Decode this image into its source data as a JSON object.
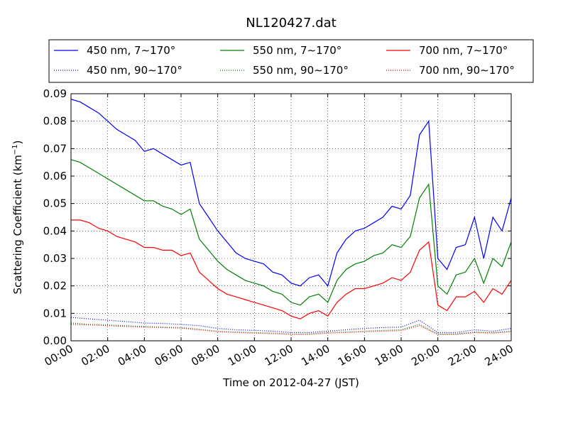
{
  "chart_data": {
    "type": "line",
    "title": "NL120427.dat",
    "xlabel": "Time on 2012-04-27 (JST)",
    "ylabel_main": "Scattering Coefficient (km",
    "ylabel_sup": "−1",
    "ylabel_close": ")",
    "xlim": [
      "00:00",
      "24:00"
    ],
    "ylim": [
      0.0,
      0.09
    ],
    "x_ticks": [
      "00:00",
      "02:00",
      "04:00",
      "06:00",
      "08:00",
      "10:00",
      "12:00",
      "14:00",
      "16:00",
      "18:00",
      "20:00",
      "22:00",
      "24:00"
    ],
    "y_ticks": [
      "0.00",
      "0.01",
      "0.02",
      "0.03",
      "0.04",
      "0.05",
      "0.06",
      "0.07",
      "0.08",
      "0.09"
    ],
    "grid": true,
    "legend_position": "top",
    "series": [
      {
        "name": "450 nm, 7∼170°",
        "color": "#0000ff",
        "style": "solid",
        "x": [
          "00:00",
          "00:30",
          "01:00",
          "01:30",
          "02:00",
          "02:30",
          "03:00",
          "03:30",
          "04:00",
          "04:30",
          "05:00",
          "05:30",
          "06:00",
          "06:30",
          "07:00",
          "07:30",
          "08:00",
          "08:30",
          "09:00",
          "09:30",
          "10:00",
          "10:30",
          "11:00",
          "11:30",
          "12:00",
          "12:30",
          "13:00",
          "13:30",
          "14:00",
          "14:30",
          "15:00",
          "15:30",
          "16:00",
          "16:30",
          "17:00",
          "17:30",
          "18:00",
          "18:30",
          "19:00",
          "19:30",
          "20:00",
          "20:30",
          "21:00",
          "21:30",
          "22:00",
          "22:30",
          "23:00",
          "23:30",
          "24:00"
        ],
        "y": [
          0.088,
          0.087,
          0.085,
          0.083,
          0.08,
          0.077,
          0.075,
          0.073,
          0.069,
          0.07,
          0.068,
          0.066,
          0.064,
          0.065,
          0.05,
          0.045,
          0.04,
          0.036,
          0.032,
          0.03,
          0.029,
          0.028,
          0.025,
          0.024,
          0.021,
          0.02,
          0.023,
          0.024,
          0.02,
          0.032,
          0.037,
          0.04,
          0.041,
          0.043,
          0.045,
          0.049,
          0.048,
          0.053,
          0.075,
          0.08,
          0.03,
          0.026,
          0.034,
          0.035,
          0.045,
          0.03,
          0.045,
          0.04,
          0.052
        ]
      },
      {
        "name": "450 nm, 90∼170°",
        "color": "#0000ff",
        "style": "dotted",
        "x": [
          "00:00",
          "01:00",
          "02:00",
          "03:00",
          "04:00",
          "05:00",
          "06:00",
          "07:00",
          "08:00",
          "09:00",
          "10:00",
          "11:00",
          "12:00",
          "13:00",
          "14:00",
          "15:00",
          "16:00",
          "17:00",
          "18:00",
          "19:00",
          "20:00",
          "21:00",
          "22:00",
          "23:00",
          "24:00"
        ],
        "y": [
          0.0085,
          0.008,
          0.0075,
          0.007,
          0.0065,
          0.0063,
          0.006,
          0.0055,
          0.0045,
          0.004,
          0.0038,
          0.0035,
          0.003,
          0.003,
          0.0035,
          0.004,
          0.0045,
          0.0048,
          0.005,
          0.0075,
          0.003,
          0.003,
          0.004,
          0.0035,
          0.0045
        ]
      },
      {
        "name": "550 nm, 7∼170°",
        "color": "#008000",
        "style": "solid",
        "x": [
          "00:00",
          "00:30",
          "01:00",
          "01:30",
          "02:00",
          "02:30",
          "03:00",
          "03:30",
          "04:00",
          "04:30",
          "05:00",
          "05:30",
          "06:00",
          "06:30",
          "07:00",
          "07:30",
          "08:00",
          "08:30",
          "09:00",
          "09:30",
          "10:00",
          "10:30",
          "11:00",
          "11:30",
          "12:00",
          "12:30",
          "13:00",
          "13:30",
          "14:00",
          "14:30",
          "15:00",
          "15:30",
          "16:00",
          "16:30",
          "17:00",
          "17:30",
          "18:00",
          "18:30",
          "19:00",
          "19:30",
          "20:00",
          "20:30",
          "21:00",
          "21:30",
          "22:00",
          "22:30",
          "23:00",
          "23:30",
          "24:00"
        ],
        "y": [
          0.066,
          0.065,
          0.063,
          0.061,
          0.059,
          0.057,
          0.055,
          0.053,
          0.051,
          0.051,
          0.049,
          0.048,
          0.046,
          0.048,
          0.037,
          0.033,
          0.029,
          0.026,
          0.024,
          0.022,
          0.021,
          0.02,
          0.018,
          0.017,
          0.014,
          0.013,
          0.016,
          0.017,
          0.014,
          0.022,
          0.026,
          0.028,
          0.029,
          0.031,
          0.032,
          0.035,
          0.034,
          0.038,
          0.052,
          0.057,
          0.02,
          0.017,
          0.024,
          0.025,
          0.03,
          0.021,
          0.03,
          0.027,
          0.036
        ]
      },
      {
        "name": "550 nm, 90∼170°",
        "color": "#008000",
        "style": "dotted",
        "x": [
          "00:00",
          "01:00",
          "02:00",
          "03:00",
          "04:00",
          "05:00",
          "06:00",
          "07:00",
          "08:00",
          "09:00",
          "10:00",
          "11:00",
          "12:00",
          "13:00",
          "14:00",
          "15:00",
          "16:00",
          "17:00",
          "18:00",
          "19:00",
          "20:00",
          "21:00",
          "22:00",
          "23:00",
          "24:00"
        ],
        "y": [
          0.0065,
          0.006,
          0.0058,
          0.0055,
          0.0052,
          0.005,
          0.0048,
          0.0042,
          0.0035,
          0.0032,
          0.003,
          0.0028,
          0.0025,
          0.0025,
          0.003,
          0.0032,
          0.0035,
          0.0038,
          0.004,
          0.006,
          0.0025,
          0.0025,
          0.0032,
          0.003,
          0.0035
        ]
      },
      {
        "name": "700 nm, 7∼170°",
        "color": "#ff0000",
        "style": "solid",
        "x": [
          "00:00",
          "00:30",
          "01:00",
          "01:30",
          "02:00",
          "02:30",
          "03:00",
          "03:30",
          "04:00",
          "04:30",
          "05:00",
          "05:30",
          "06:00",
          "06:30",
          "07:00",
          "07:30",
          "08:00",
          "08:30",
          "09:00",
          "09:30",
          "10:00",
          "10:30",
          "11:00",
          "11:30",
          "12:00",
          "12:30",
          "13:00",
          "13:30",
          "14:00",
          "14:30",
          "15:00",
          "15:30",
          "16:00",
          "16:30",
          "17:00",
          "17:30",
          "18:00",
          "18:30",
          "19:00",
          "19:30",
          "20:00",
          "20:30",
          "21:00",
          "21:30",
          "22:00",
          "22:30",
          "23:00",
          "23:30",
          "24:00"
        ],
        "y": [
          0.044,
          0.044,
          0.043,
          0.041,
          0.04,
          0.038,
          0.037,
          0.036,
          0.034,
          0.034,
          0.033,
          0.033,
          0.031,
          0.032,
          0.025,
          0.022,
          0.019,
          0.017,
          0.016,
          0.015,
          0.014,
          0.013,
          0.012,
          0.011,
          0.009,
          0.008,
          0.01,
          0.011,
          0.009,
          0.014,
          0.017,
          0.019,
          0.019,
          0.02,
          0.021,
          0.023,
          0.022,
          0.025,
          0.033,
          0.036,
          0.013,
          0.011,
          0.016,
          0.016,
          0.018,
          0.014,
          0.019,
          0.017,
          0.022
        ]
      },
      {
        "name": "700 nm, 90∼170°",
        "color": "#ff0000",
        "style": "dotted",
        "x": [
          "00:00",
          "01:00",
          "02:00",
          "03:00",
          "04:00",
          "05:00",
          "06:00",
          "07:00",
          "08:00",
          "09:00",
          "10:00",
          "11:00",
          "12:00",
          "13:00",
          "14:00",
          "15:00",
          "16:00",
          "17:00",
          "18:00",
          "19:00",
          "20:00",
          "21:00",
          "22:00",
          "23:00",
          "24:00"
        ],
        "y": [
          0.006,
          0.0058,
          0.0055,
          0.0052,
          0.005,
          0.0048,
          0.0046,
          0.004,
          0.0033,
          0.003,
          0.0028,
          0.0026,
          0.0023,
          0.0023,
          0.0028,
          0.003,
          0.0033,
          0.0035,
          0.0037,
          0.0055,
          0.0023,
          0.0023,
          0.003,
          0.0028,
          0.0033
        ]
      }
    ]
  }
}
